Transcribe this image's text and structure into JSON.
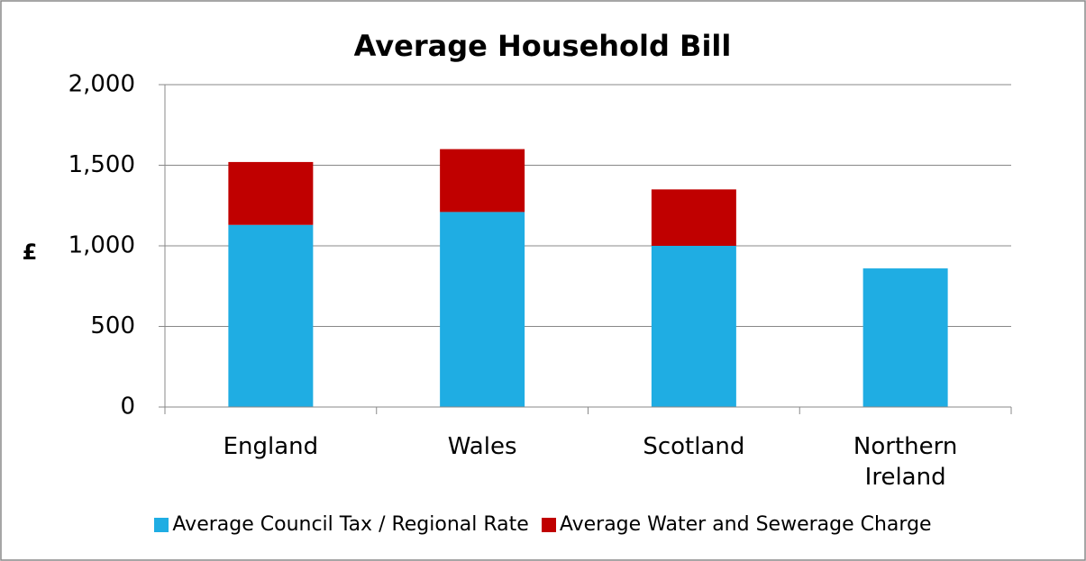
{
  "chart_data": {
    "type": "stacked-bar",
    "title": "Average Household Bill",
    "y_label": "£",
    "categories": [
      "England",
      "Wales",
      "Scotland",
      "Northern Ireland"
    ],
    "series": [
      {
        "name": "Average Council Tax / Regional Rate",
        "color": "#1fade3",
        "values": [
          1130,
          1210,
          1000,
          860
        ]
      },
      {
        "name": "Average Water and Sewerage Charge",
        "color": "#c00000",
        "values": [
          390,
          390,
          350,
          null
        ]
      }
    ],
    "ylim": [
      0,
      2000
    ],
    "yticks": [
      0,
      500,
      {
        "value": 1000,
        "label": "1,000"
      },
      {
        "value": 1500,
        "label": "1,500"
      },
      {
        "value": 2000,
        "label": "2,000"
      }
    ],
    "grid": true
  }
}
